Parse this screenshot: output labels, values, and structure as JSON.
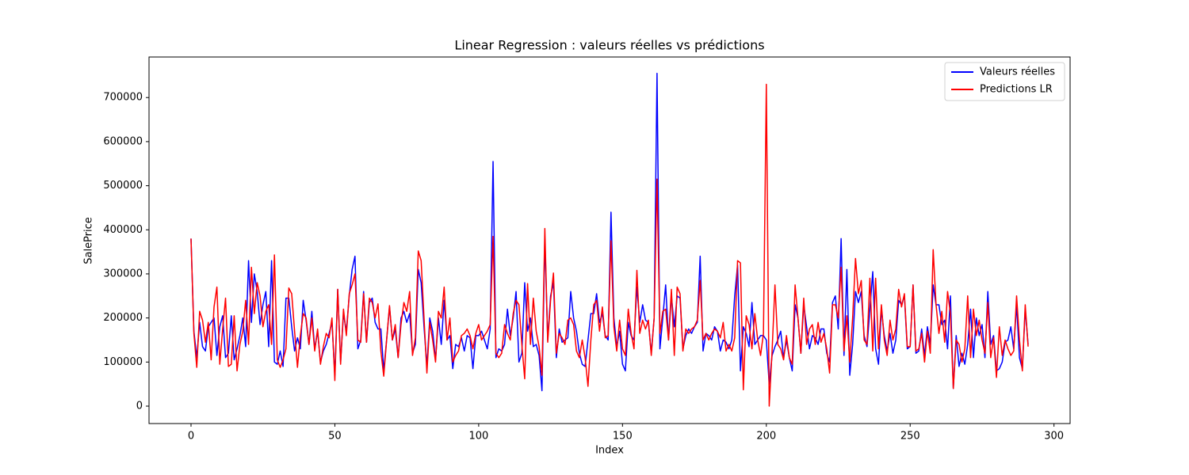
{
  "chart_data": {
    "type": "line",
    "title": "Linear Regression : valeurs réelles vs prédictions",
    "x_label": "Index",
    "y_label": "SalePrice",
    "xlim": [
      -14.6,
      305.6
    ],
    "ylim": [
      -39500,
      792000
    ],
    "xticks": [
      0,
      50,
      100,
      150,
      200,
      250,
      300
    ],
    "yticks": [
      0,
      100000,
      200000,
      300000,
      400000,
      500000,
      600000,
      700000
    ],
    "grid": false,
    "legend": "upper right",
    "x": [
      0,
      1,
      2,
      3,
      4,
      5,
      6,
      7,
      8,
      9,
      10,
      11,
      12,
      13,
      14,
      15,
      16,
      17,
      18,
      19,
      20,
      21,
      22,
      23,
      24,
      25,
      26,
      27,
      28,
      29,
      30,
      31,
      32,
      33,
      34,
      35,
      36,
      37,
      38,
      39,
      40,
      41,
      42,
      43,
      44,
      45,
      46,
      47,
      48,
      49,
      50,
      51,
      52,
      53,
      54,
      55,
      56,
      57,
      58,
      59,
      60,
      61,
      62,
      63,
      64,
      65,
      66,
      67,
      68,
      69,
      70,
      71,
      72,
      73,
      74,
      75,
      76,
      77,
      78,
      79,
      80,
      81,
      82,
      83,
      84,
      85,
      86,
      87,
      88,
      89,
      90,
      91,
      92,
      93,
      94,
      95,
      96,
      97,
      98,
      99,
      100,
      101,
      102,
      103,
      104,
      105,
      106,
      107,
      108,
      109,
      110,
      111,
      112,
      113,
      114,
      115,
      116,
      117,
      118,
      119,
      120,
      121,
      122,
      123,
      124,
      125,
      126,
      127,
      128,
      129,
      130,
      131,
      132,
      133,
      134,
      135,
      136,
      137,
      138,
      139,
      140,
      141,
      142,
      143,
      144,
      145,
      146,
      147,
      148,
      149,
      150,
      151,
      152,
      153,
      154,
      155,
      156,
      157,
      158,
      159,
      160,
      161,
      162,
      163,
      164,
      165,
      166,
      167,
      168,
      169,
      170,
      171,
      172,
      173,
      174,
      175,
      176,
      177,
      178,
      179,
      180,
      181,
      182,
      183,
      184,
      185,
      186,
      187,
      188,
      189,
      190,
      191,
      192,
      193,
      194,
      195,
      196,
      197,
      198,
      199,
      200,
      201,
      202,
      203,
      204,
      205,
      206,
      207,
      208,
      209,
      210,
      211,
      212,
      213,
      214,
      215,
      216,
      217,
      218,
      219,
      220,
      221,
      222,
      223,
      224,
      225,
      226,
      227,
      228,
      229,
      230,
      231,
      232,
      233,
      234,
      235,
      236,
      237,
      238,
      239,
      240,
      241,
      242,
      243,
      244,
      245,
      246,
      247,
      248,
      249,
      250,
      251,
      252,
      253,
      254,
      255,
      256,
      257,
      258,
      259,
      260,
      261,
      262,
      263,
      264,
      265,
      266,
      267,
      268,
      269,
      270,
      271,
      272,
      273,
      274,
      275,
      276,
      277,
      278,
      279,
      280,
      281,
      282,
      283,
      284,
      285,
      286,
      287,
      288,
      289,
      290,
      291
    ],
    "series": [
      {
        "name": "Valeurs réelles",
        "color": "#0000ff",
        "values": [
          380000,
          170000,
          110000,
          190000,
          135000,
          125000,
          180000,
          190000,
          200000,
          115000,
          180000,
          205000,
          110000,
          120000,
          205000,
          105000,
          130000,
          160000,
          200000,
          135000,
          330000,
          190000,
          300000,
          260000,
          185000,
          230000,
          260000,
          135000,
          330000,
          100000,
          95000,
          125000,
          90000,
          245000,
          245000,
          180000,
          125000,
          155000,
          130000,
          240000,
          195000,
          140000,
          215000,
          130000,
          170000,
          100000,
          125000,
          140000,
          165000,
          190000,
          70000,
          265000,
          100000,
          210000,
          170000,
          250000,
          310000,
          340000,
          130000,
          150000,
          260000,
          145000,
          235000,
          245000,
          190000,
          175000,
          175000,
          80000,
          150000,
          225000,
          150000,
          175000,
          110000,
          200000,
          215000,
          190000,
          210000,
          120000,
          140000,
          310000,
          280000,
          180000,
          90000,
          200000,
          170000,
          105000,
          200000,
          140000,
          240000,
          150000,
          160000,
          85000,
          140000,
          135000,
          155000,
          125000,
          160000,
          155000,
          85000,
          160000,
          160000,
          170000,
          150000,
          130000,
          175000,
          555000,
          110000,
          130000,
          125000,
          140000,
          220000,
          160000,
          200000,
          260000,
          100000,
          120000,
          280000,
          170000,
          200000,
          135000,
          140000,
          115000,
          35000,
          380000,
          150000,
          250000,
          280000,
          110000,
          175000,
          145000,
          150000,
          155000,
          260000,
          200000,
          170000,
          120000,
          95000,
          90000,
          150000,
          210000,
          210000,
          255000,
          190000,
          210000,
          160000,
          150000,
          440000,
          200000,
          135000,
          170000,
          95000,
          80000,
          190000,
          160000,
          150000,
          270000,
          190000,
          230000,
          195000,
          190000,
          120000,
          200000,
          755000,
          130000,
          200000,
          275000,
          150000,
          250000,
          180000,
          250000,
          245000,
          130000,
          160000,
          175000,
          165000,
          180000,
          190000,
          340000,
          125000,
          165000,
          160000,
          150000,
          180000,
          170000,
          125000,
          150000,
          145000,
          130000,
          150000,
          250000,
          320000,
          80000,
          180000,
          165000,
          135000,
          235000,
          140000,
          150000,
          160000,
          160000,
          150000,
          50000,
          115000,
          135000,
          150000,
          170000,
          110000,
          150000,
          110000,
          80000,
          230000,
          200000,
          120000,
          230000,
          180000,
          130000,
          160000,
          155000,
          140000,
          175000,
          175000,
          120000,
          100000,
          235000,
          250000,
          175000,
          380000,
          115000,
          310000,
          70000,
          140000,
          260000,
          235000,
          260000,
          160000,
          135000,
          220000,
          305000,
          130000,
          95000,
          220000,
          160000,
          125000,
          165000,
          120000,
          150000,
          240000,
          230000,
          250000,
          130000,
          135000,
          275000,
          120000,
          125000,
          175000,
          115000,
          180000,
          140000,
          275000,
          230000,
          230000,
          185000,
          195000,
          130000,
          250000,
          40000,
          160000,
          90000,
          120000,
          95000,
          140000,
          220000,
          110000,
          200000,
          160000,
          185000,
          110000,
          260000,
          140000,
          160000,
          80000,
          85000,
          100000,
          145000,
          150000,
          180000,
          130000,
          230000,
          110000,
          85000,
          220000,
          140000
        ]
      },
      {
        "name": "Predictions LR",
        "color": "#ff0000",
        "values": [
          380000,
          165000,
          88000,
          215000,
          195000,
          145000,
          190000,
          105000,
          225000,
          270000,
          95000,
          175000,
          245000,
          90000,
          95000,
          205000,
          80000,
          140000,
          170000,
          240000,
          140000,
          315000,
          210000,
          280000,
          250000,
          180000,
          215000,
          230000,
          140000,
          343000,
          105000,
          88000,
          105000,
          130000,
          268000,
          255000,
          170000,
          88000,
          160000,
          210000,
          200000,
          140000,
          200000,
          125000,
          175000,
          95000,
          135000,
          165000,
          155000,
          200000,
          58000,
          265000,
          95000,
          220000,
          160000,
          255000,
          275000,
          300000,
          150000,
          145000,
          255000,
          145000,
          245000,
          235000,
          200000,
          232000,
          125000,
          68000,
          150000,
          228000,
          150000,
          185000,
          110000,
          185000,
          235000,
          215000,
          260000,
          115000,
          155000,
          352000,
          330000,
          200000,
          75000,
          190000,
          150000,
          100000,
          215000,
          200000,
          270000,
          150000,
          200000,
          100000,
          115000,
          125000,
          160000,
          165000,
          175000,
          160000,
          130000,
          165000,
          185000,
          150000,
          160000,
          170000,
          185000,
          385000,
          120000,
          110000,
          120000,
          185000,
          165000,
          150000,
          210000,
          240000,
          230000,
          140000,
          62000,
          278000,
          140000,
          245000,
          170000,
          135000,
          70000,
          403000,
          145000,
          240000,
          302000,
          120000,
          165000,
          155000,
          140000,
          195000,
          200000,
          185000,
          125000,
          110000,
          150000,
          110000,
          45000,
          150000,
          230000,
          240000,
          170000,
          225000,
          155000,
          160000,
          375000,
          180000,
          125000,
          195000,
          130000,
          115000,
          220000,
          165000,
          130000,
          308000,
          165000,
          195000,
          175000,
          195000,
          115000,
          200000,
          515000,
          165000,
          215000,
          220000,
          150000,
          265000,
          115000,
          270000,
          255000,
          125000,
          175000,
          165000,
          175000,
          180000,
          195000,
          285000,
          150000,
          165000,
          150000,
          165000,
          175000,
          170000,
          155000,
          190000,
          125000,
          140000,
          125000,
          155000,
          330000,
          325000,
          37000,
          205000,
          185000,
          130000,
          210000,
          150000,
          115000,
          165000,
          730000,
          0,
          125000,
          275000,
          140000,
          130000,
          105000,
          160000,
          110000,
          95000,
          275000,
          200000,
          120000,
          245000,
          140000,
          175000,
          185000,
          140000,
          190000,
          145000,
          165000,
          130000,
          75000,
          230000,
          230000,
          200000,
          315000,
          125000,
          205000,
          100000,
          200000,
          335000,
          255000,
          285000,
          150000,
          140000,
          290000,
          125000,
          290000,
          130000,
          230000,
          150000,
          115000,
          195000,
          150000,
          175000,
          265000,
          225000,
          255000,
          135000,
          135000,
          275000,
          125000,
          130000,
          165000,
          100000,
          170000,
          120000,
          355000,
          230000,
          165000,
          215000,
          145000,
          260000,
          210000,
          40000,
          150000,
          140000,
          100000,
          130000,
          250000,
          110000,
          220000,
          160000,
          195000,
          150000,
          120000,
          235000,
          110000,
          155000,
          65000,
          180000,
          115000,
          150000,
          130000,
          115000,
          125000,
          250000,
          150000,
          80000,
          230000,
          135000
        ]
      }
    ]
  }
}
